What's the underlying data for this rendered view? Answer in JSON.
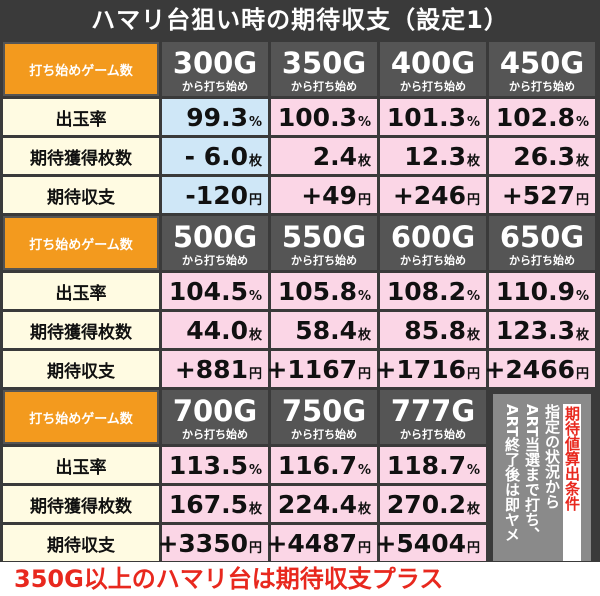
{
  "title": "ハマリ台狙い時の期待収支（設定1）",
  "blocks": [
    {
      "header_label": "打ち始めゲーム数",
      "columns": [
        {
          "game": "300G",
          "sub": "から打ち始め",
          "color": "#cfe7f7"
        },
        {
          "game": "350G",
          "sub": "から打ち始め",
          "color": "#fbd6e6"
        },
        {
          "game": "400G",
          "sub": "から打ち始め",
          "color": "#fbd6e6"
        },
        {
          "game": "450G",
          "sub": "から打ち始め",
          "color": "#fbd6e6"
        }
      ],
      "rows": [
        {
          "label": "出玉率",
          "cells": [
            {
              "value": "99.3",
              "unit": "%"
            },
            {
              "value": "100.3",
              "unit": "%"
            },
            {
              "value": "101.3",
              "unit": "%"
            },
            {
              "value": "102.8",
              "unit": "%"
            }
          ]
        },
        {
          "label": "期待獲得枚数",
          "cells": [
            {
              "value": "- 6.0",
              "unit": "枚"
            },
            {
              "value": "2.4",
              "unit": "枚"
            },
            {
              "value": "12.3",
              "unit": "枚"
            },
            {
              "value": "26.3",
              "unit": "枚"
            }
          ]
        },
        {
          "label": "期待収支",
          "cells": [
            {
              "value": "-120",
              "unit": "円"
            },
            {
              "value": "+49",
              "unit": "円"
            },
            {
              "value": "+246",
              "unit": "円"
            },
            {
              "value": "+527",
              "unit": "円"
            }
          ]
        }
      ]
    },
    {
      "header_label": "打ち始めゲーム数",
      "columns": [
        {
          "game": "500G",
          "sub": "から打ち始め",
          "color": "#fbd6e6"
        },
        {
          "game": "550G",
          "sub": "から打ち始め",
          "color": "#fbd6e6"
        },
        {
          "game": "600G",
          "sub": "から打ち始め",
          "color": "#fbd6e6"
        },
        {
          "game": "650G",
          "sub": "から打ち始め",
          "color": "#fbd6e6"
        }
      ],
      "rows": [
        {
          "label": "出玉率",
          "cells": [
            {
              "value": "104.5",
              "unit": "%"
            },
            {
              "value": "105.8",
              "unit": "%"
            },
            {
              "value": "108.2",
              "unit": "%"
            },
            {
              "value": "110.9",
              "unit": "%"
            }
          ]
        },
        {
          "label": "期待獲得枚数",
          "cells": [
            {
              "value": "44.0",
              "unit": "枚"
            },
            {
              "value": "58.4",
              "unit": "枚"
            },
            {
              "value": "85.8",
              "unit": "枚"
            },
            {
              "value": "123.3",
              "unit": "枚"
            }
          ]
        },
        {
          "label": "期待収支",
          "cells": [
            {
              "value": "+881",
              "unit": "円"
            },
            {
              "value": "+1167",
              "unit": "円"
            },
            {
              "value": "+1716",
              "unit": "円"
            },
            {
              "value": "+2466",
              "unit": "円"
            }
          ]
        }
      ]
    },
    {
      "header_label": "打ち始めゲーム数",
      "columns": [
        {
          "game": "700G",
          "sub": "から打ち始め",
          "color": "#fbd6e6"
        },
        {
          "game": "750G",
          "sub": "から打ち始め",
          "color": "#fbd6e6"
        },
        {
          "game": "777G",
          "sub": "から打ち始め",
          "color": "#fbd6e6"
        }
      ],
      "rows": [
        {
          "label": "出玉率",
          "cells": [
            {
              "value": "113.5",
              "unit": "%"
            },
            {
              "value": "116.7",
              "unit": "%"
            },
            {
              "value": "118.7",
              "unit": "%"
            }
          ]
        },
        {
          "label": "期待獲得枚数",
          "cells": [
            {
              "value": "167.5",
              "unit": "枚"
            },
            {
              "value": "224.4",
              "unit": "枚"
            },
            {
              "value": "270.2",
              "unit": "枚"
            }
          ]
        },
        {
          "label": "期待収支",
          "cells": [
            {
              "value": "+3350",
              "unit": "円"
            },
            {
              "value": "+4487",
              "unit": "円"
            },
            {
              "value": "+5404",
              "unit": "円"
            }
          ]
        }
      ]
    }
  ],
  "note": {
    "title": "期待値算出条件",
    "lines": [
      "指定の状況から",
      "ART当選まで打ち、",
      "ART終了後は即ヤメ"
    ]
  },
  "footer": "350G以上のハマリ台は期待収支プラス"
}
